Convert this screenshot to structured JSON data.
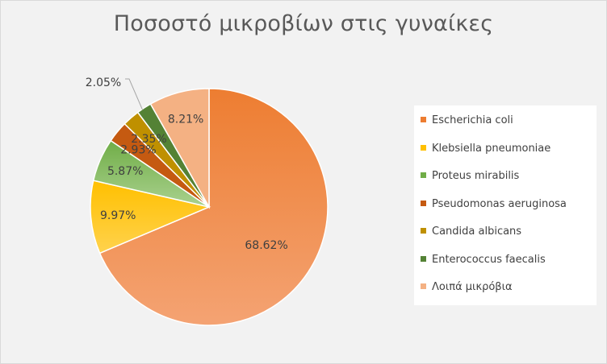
{
  "chart_data": {
    "type": "pie",
    "title": "Ποσοστό μικροβίων στις γυναίκες",
    "legend_position": "right",
    "categories": [
      "Escherichia coli",
      "Klebsiella pneumoniae",
      "Proteus mirabilis",
      "Pseudomonas aeruginosa",
      "Candida albicans",
      "Enterococcus faecalis",
      "Λοιπά μικρόβια"
    ],
    "values": [
      68.62,
      9.97,
      5.87,
      2.93,
      2.35,
      2.05,
      8.21
    ],
    "data_labels": [
      "68.62%",
      "9.97%",
      "5.87%",
      "2.93%",
      "2.35%",
      "2.05%",
      "8.21%"
    ],
    "colors": [
      "#f4a373",
      "#ffd24d",
      "#a9d18e",
      "#c55a11",
      "#bf9000",
      "#548235",
      "#f4b183"
    ],
    "gradient_colors": [
      "#ed7d31",
      "#ffc000",
      "#70ad47",
      "#c55a11",
      "#bf9000",
      "#548235",
      "#f4b183"
    ]
  }
}
